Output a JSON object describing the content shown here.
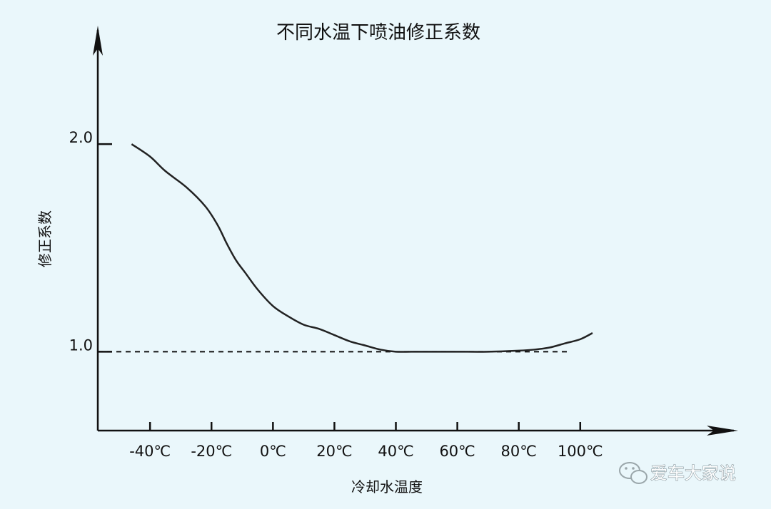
{
  "chart_data": {
    "type": "line",
    "title": "不同水温下喷油修正系数",
    "xlabel": "冷却水温度",
    "ylabel": "修正系数",
    "x_ticks": [
      {
        "value": -40,
        "label": "-40℃"
      },
      {
        "value": -20,
        "label": "-20℃"
      },
      {
        "value": 0,
        "label": "0℃"
      },
      {
        "value": 20,
        "label": "20℃"
      },
      {
        "value": 40,
        "label": "40℃"
      },
      {
        "value": 60,
        "label": "60℃"
      },
      {
        "value": 80,
        "label": "80℃"
      },
      {
        "value": 100,
        "label": "100℃"
      }
    ],
    "y_ticks": [
      {
        "value": 1.0,
        "label": "1.0"
      },
      {
        "value": 2.0,
        "label": "2.0"
      }
    ],
    "xlim": [
      -57,
      150
    ],
    "ylim": [
      0.62,
      2.55
    ],
    "reference_line": {
      "y": 1.0,
      "style": "dashed"
    },
    "grid": false,
    "series": [
      {
        "color": "#222222",
        "x": [
          -46,
          -40,
          -35,
          -28,
          -22,
          -18,
          -15,
          -12,
          -9,
          -5,
          0,
          5,
          10,
          15,
          20,
          25,
          30,
          35,
          40,
          45,
          50,
          60,
          70,
          80,
          85,
          90,
          95,
          100,
          104
        ],
        "y": [
          2.0,
          1.94,
          1.87,
          1.79,
          1.7,
          1.61,
          1.52,
          1.44,
          1.38,
          1.3,
          1.22,
          1.17,
          1.13,
          1.11,
          1.08,
          1.05,
          1.03,
          1.01,
          1.0,
          1.0,
          1.0,
          1.0,
          1.0,
          1.005,
          1.01,
          1.02,
          1.04,
          1.06,
          1.09
        ]
      }
    ]
  },
  "watermark": {
    "text": "爱车大家说",
    "icon": "wechat-icon"
  }
}
